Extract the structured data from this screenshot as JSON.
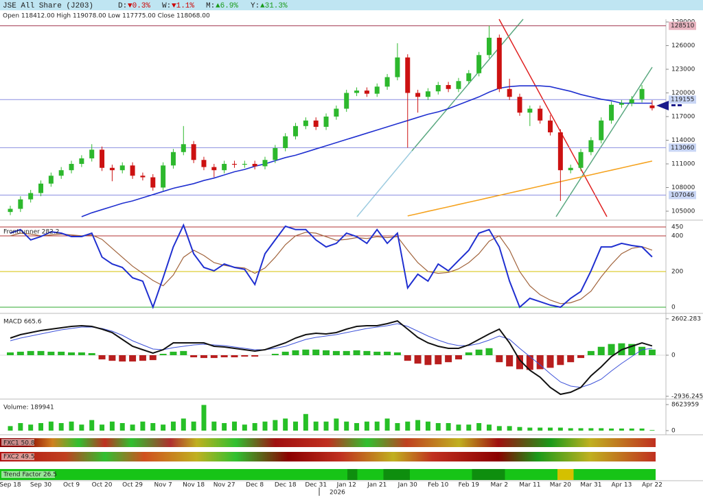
{
  "header": {
    "title": "JSE All Share (J203)",
    "changes": [
      {
        "label": "D:",
        "value": "▼0.3%",
        "color": "#cc0000"
      },
      {
        "label": "W:",
        "value": "▼1.1%",
        "color": "#cc0000"
      },
      {
        "label": "M:",
        "value": "▲6.9%",
        "color": "#1a9a1a"
      },
      {
        "label": "Y:",
        "value": "▲31.3%",
        "color": "#1a9a1a"
      }
    ],
    "ohlc": "Open 118412.00  High 119078.00  Low 117775.00  Close 118068.00"
  },
  "chart_data": [
    {
      "type": "candlestick",
      "categories": [
        "Sep 18",
        null,
        null,
        "Sep 30",
        null,
        null,
        "Oct 9",
        null,
        null,
        "Oct 20",
        null,
        null,
        "Oct 29",
        null,
        null,
        "Nov 7",
        null,
        null,
        "Nov 18",
        null,
        null,
        "Nov 27",
        null,
        null,
        "Dec 8",
        null,
        null,
        "Dec 18",
        null,
        null,
        "Dec 31",
        null,
        null,
        "Jan 12",
        null,
        null,
        "Jan 21",
        null,
        null,
        "Jan 30",
        null,
        null,
        "Feb 10",
        null,
        null,
        "Feb 19",
        null,
        null,
        "Mar 2",
        null,
        null,
        "Mar 11",
        null,
        null,
        "Mar 20",
        null,
        null,
        "Mar 31",
        null,
        null,
        "Apr 13",
        null,
        null,
        "Apr 22"
      ],
      "year_label": "2026",
      "open": [
        104900,
        105300,
        106500,
        107300,
        108500,
        109500,
        110200,
        111000,
        111700,
        112800,
        110500,
        110200,
        110800,
        109500,
        109300,
        108000,
        110800,
        112500,
        113500,
        111500,
        110600,
        110200,
        111000,
        110900,
        111000,
        110700,
        111500,
        113000,
        114500,
        115800,
        116500,
        115700,
        117000,
        118000,
        120000,
        120300,
        119900,
        120800,
        122000,
        124500,
        120000,
        119500,
        120200,
        121000,
        120500,
        121500,
        122500,
        124800,
        127000,
        120500,
        119500,
        117500,
        118000,
        116500,
        115000,
        110200,
        110500,
        112500,
        114000,
        116500,
        118500,
        118700,
        119200,
        118412
      ],
      "high": [
        105700,
        106900,
        107700,
        108900,
        109900,
        110600,
        111400,
        112100,
        113500,
        113200,
        110900,
        111200,
        111200,
        109900,
        109700,
        111200,
        112900,
        115800,
        113900,
        111900,
        111000,
        111400,
        111400,
        111400,
        111400,
        111900,
        113400,
        114900,
        116200,
        116900,
        116900,
        117400,
        118400,
        120400,
        120700,
        120700,
        121200,
        122400,
        126300,
        124900,
        120400,
        120600,
        121400,
        121400,
        121900,
        122900,
        125200,
        128510,
        127400,
        121800,
        119900,
        118400,
        118400,
        117200,
        115400,
        110900,
        112900,
        114400,
        116900,
        118900,
        119100,
        119600,
        121000,
        119078
      ],
      "low": [
        104500,
        104900,
        106100,
        106900,
        108100,
        109100,
        109800,
        110600,
        111300,
        110100,
        108800,
        109800,
        109100,
        108900,
        107600,
        107600,
        110400,
        112100,
        111100,
        110200,
        109300,
        109800,
        110500,
        110500,
        110300,
        110300,
        111100,
        112600,
        114100,
        115400,
        115300,
        115300,
        116600,
        117600,
        119600,
        119500,
        119500,
        120400,
        121600,
        113060,
        117500,
        119100,
        119800,
        120100,
        120100,
        121100,
        122100,
        124400,
        120100,
        119100,
        117100,
        115800,
        116100,
        114600,
        106300,
        109800,
        110100,
        112100,
        113600,
        116100,
        118100,
        118300,
        118800,
        117775
      ],
      "close": [
        105300,
        106500,
        107300,
        108500,
        109500,
        110200,
        111000,
        111700,
        112800,
        110500,
        110200,
        110800,
        109500,
        109300,
        108000,
        110800,
        112500,
        113500,
        111500,
        110600,
        110200,
        111000,
        110900,
        111000,
        110700,
        111500,
        113000,
        114500,
        115800,
        116500,
        115700,
        117000,
        118000,
        120000,
        120300,
        119900,
        120800,
        122000,
        124500,
        120000,
        119500,
        120200,
        121000,
        120500,
        121500,
        122500,
        124800,
        127000,
        120500,
        119500,
        117500,
        118000,
        116500,
        115000,
        110200,
        110500,
        112500,
        114000,
        116500,
        118500,
        118700,
        119200,
        120500,
        118068
      ],
      "up_color": "#2db82d",
      "down_color": "#cc1111",
      "overlays": [
        {
          "color": "#1f2fd0",
          "values": [
            null,
            null,
            null,
            null,
            null,
            null,
            null,
            104300,
            104800,
            105200,
            105600,
            106000,
            106300,
            106700,
            107100,
            107500,
            107900,
            108200,
            108500,
            108900,
            109200,
            109600,
            110000,
            110300,
            110700,
            111000,
            111400,
            111800,
            112100,
            112500,
            112900,
            113300,
            113700,
            114100,
            114500,
            114900,
            115300,
            115700,
            116100,
            116500,
            116900,
            117300,
            117600,
            118000,
            118500,
            119000,
            119500,
            120100,
            120600,
            120800,
            120900,
            120900,
            120900,
            120800,
            120500,
            120200,
            119800,
            119500,
            119200,
            119000,
            118700,
            118700,
            118700,
            118700
          ]
        },
        {
          "color": "#f5a21e",
          "values": [
            null,
            null,
            null,
            null,
            null,
            null,
            null,
            null,
            null,
            null,
            null,
            null,
            null,
            null,
            null,
            null,
            null,
            null,
            null,
            null,
            null,
            null,
            null,
            null,
            null,
            null,
            null,
            null,
            null,
            null,
            null,
            null,
            null,
            null,
            null,
            null,
            null,
            null,
            null,
            104400,
            104690,
            104980,
            105270,
            105560,
            105850,
            106140,
            106430,
            106720,
            107010,
            107300,
            107590,
            107880,
            108170,
            108460,
            108750,
            109040,
            109330,
            109620,
            109910,
            110200,
            110490,
            110780,
            111070,
            111360
          ]
        }
      ],
      "levels": [
        {
          "value": 128510,
          "color": "#a3384f",
          "fill": "#e8b4c0"
        },
        {
          "value": 119155,
          "color": "#8a8ee0",
          "fill": "#c9d6f5"
        },
        {
          "value": 113060,
          "color": "#8a8ee0",
          "fill": "#c9d6f5"
        },
        {
          "value": 107046,
          "color": "#8a8ee0",
          "fill": "#c9d6f5"
        }
      ],
      "ylim": [
        104130,
        129350
      ],
      "yticks": [
        105000,
        108000,
        111000,
        114000,
        117000,
        120000,
        123000,
        126000,
        129000
      ]
    },
    {
      "type": "line",
      "title": "Frontrunner 282.2",
      "series": [
        {
          "color": "#a0623a",
          "values": [
            400,
            415,
            410,
            400,
            405,
            410,
            405,
            400,
            405,
            380,
            330,
            280,
            230,
            190,
            150,
            120,
            180,
            280,
            320,
            290,
            250,
            235,
            225,
            220,
            190,
            220,
            280,
            350,
            400,
            420,
            415,
            395,
            375,
            380,
            390,
            385,
            395,
            390,
            395,
            320,
            250,
            200,
            190,
            195,
            215,
            250,
            300,
            370,
            400,
            320,
            200,
            120,
            70,
            40,
            20,
            25,
            45,
            90,
            170,
            240,
            300,
            330,
            340,
            320
          ]
        },
        {
          "color": "#1f2fd0",
          "values": [
            415,
            435,
            377,
            396,
            423,
            415,
            396,
            396,
            415,
            281,
            242,
            223,
            165,
            146,
            0,
            165,
            338,
            460,
            300,
            223,
            204,
            242,
            223,
            212,
            127,
            300,
            377,
            454,
            435,
            435,
            377,
            338,
            358,
            415,
            396,
            358,
            435,
            358,
            415,
            108,
            185,
            146,
            242,
            204,
            262,
            319,
            415,
            435,
            338,
            146,
            0,
            50,
            31,
            12,
            0,
            50,
            88,
            204,
            338,
            338,
            358,
            346,
            338,
            282.2
          ]
        }
      ],
      "ylim": [
        -27,
        469
      ],
      "yticks": [
        0,
        200,
        400,
        450
      ],
      "tick_colors": [
        "#2eaa2e",
        "#d4c000",
        "#b03030",
        "#b03030"
      ]
    },
    {
      "type": "macd",
      "title": "MACD 665.6",
      "histogram": [
        200,
        250,
        300,
        300,
        250,
        250,
        200,
        200,
        150,
        -300,
        -400,
        -450,
        -450,
        -400,
        -350,
        100,
        250,
        300,
        -150,
        -200,
        -200,
        -150,
        -150,
        -100,
        -100,
        0,
        100,
        250,
        350,
        400,
        400,
        350,
        300,
        300,
        350,
        300,
        250,
        250,
        200,
        -400,
        -600,
        -700,
        -650,
        -500,
        -300,
        200,
        400,
        500,
        -500,
        -800,
        -1000,
        -1050,
        -1000,
        -900,
        -700,
        -500,
        -200,
        300,
        600,
        800,
        850,
        800,
        600,
        400
      ],
      "pos_color": "#27b827",
      "neg_color": "#b81e1e",
      "series": [
        {
          "color": "#3b50d8",
          "values": [
            1029,
            1225,
            1372,
            1519,
            1666,
            1813,
            1911,
            2009,
            2009,
            1911,
            1715,
            1421,
            1029,
            735,
            441,
            392,
            539,
            637,
            735,
            784,
            735,
            686,
            588,
            490,
            392,
            392,
            490,
            637,
            882,
            1127,
            1274,
            1372,
            1470,
            1617,
            1764,
            1911,
            2009,
            2107,
            2254,
            2058,
            1715,
            1372,
            1078,
            833,
            686,
            686,
            833,
            1078,
            1372,
            1127,
            490,
            -98,
            -686,
            -1323,
            -1911,
            -2205,
            -2303,
            -2058,
            -1715,
            -1127,
            -588,
            -98,
            392,
            490
          ]
        },
        {
          "color": "#111111",
          "values": [
            1225,
            1470,
            1617,
            1764,
            1862,
            1960,
            2058,
            2107,
            2058,
            1862,
            1617,
            1127,
            637,
            392,
            147,
            392,
            882,
            882,
            882,
            882,
            637,
            588,
            490,
            392,
            294,
            392,
            637,
            882,
            1225,
            1470,
            1568,
            1519,
            1617,
            1862,
            2058,
            2107,
            2107,
            2254,
            2450,
            1862,
            1274,
            882,
            637,
            490,
            490,
            735,
            1127,
            1519,
            1862,
            882,
            -343,
            -1078,
            -1568,
            -2303,
            -2793,
            -2646,
            -2303,
            -1470,
            -833,
            -98,
            392,
            637,
            882,
            665.6
          ]
        }
      ],
      "ylim": [
        -3038,
        2842
      ],
      "yticks": [
        -2936.245,
        0,
        2602.283
      ]
    },
    {
      "type": "bar",
      "title": "Volume: 189941",
      "color": "#27c027",
      "values": [
        1500000,
        2500000,
        2000000,
        2500000,
        3000000,
        2500000,
        3000000,
        2000000,
        3500000,
        2000000,
        3000000,
        2500000,
        2000000,
        3000000,
        2500000,
        2000000,
        3000000,
        4000000,
        3000000,
        8500000,
        3000000,
        2500000,
        3000000,
        2000000,
        2500000,
        3000000,
        3500000,
        4000000,
        3000000,
        5500000,
        3000000,
        3000000,
        4000000,
        3000000,
        2500000,
        3000000,
        3000000,
        4000000,
        2500000,
        3000000,
        3500000,
        3000000,
        2500000,
        2500000,
        2000000,
        2000000,
        2500000,
        2000000,
        1500000,
        1500000,
        1200000,
        1000000,
        1000000,
        1000000,
        1000000,
        800000,
        800000,
        800000,
        800000,
        700000,
        700000,
        700000,
        700000,
        189941
      ],
      "ylim": [
        -908000,
        9758000
      ],
      "yticks": [
        0,
        8623959
      ]
    }
  ],
  "strips": [
    {
      "label": "FXC1 50.8"
    },
    {
      "label": "FXC2 49.5"
    },
    {
      "label": "Trend Factor 26.5"
    }
  ]
}
